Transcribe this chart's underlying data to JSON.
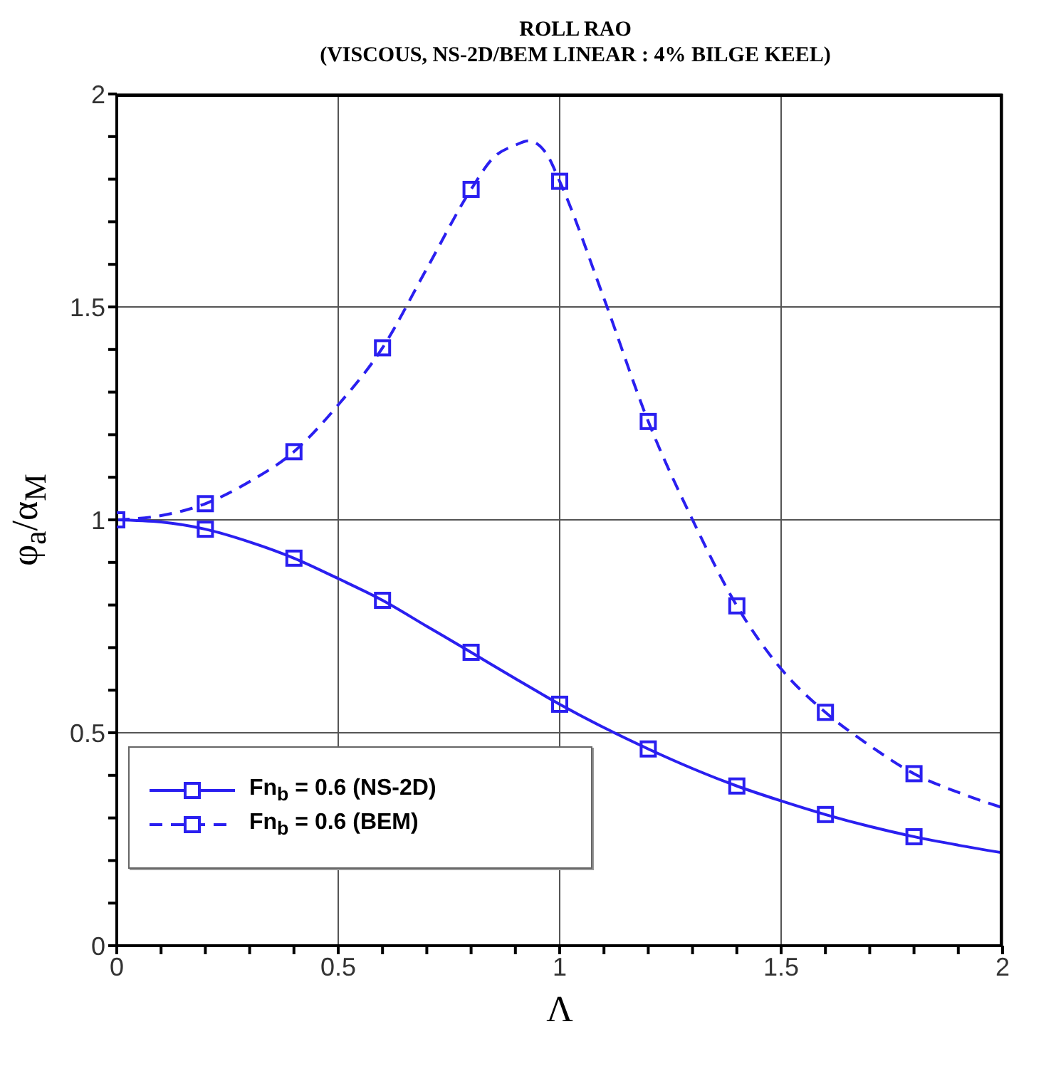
{
  "chart_data": {
    "type": "line",
    "title": "ROLL RAO",
    "subtitle": "(VISCOUS, NS-2D/BEM LINEAR : 4% BILGE KEEL)",
    "xlabel": "Λ",
    "ylabel": "φ$_{a}$/α$_{M}$",
    "xlim": [
      0,
      2
    ],
    "ylim": [
      0,
      2
    ],
    "xticks": [
      0,
      {
        "value": 0.1,
        "label": null
      },
      {
        "value": 0.2,
        "label": null
      },
      {
        "value": 0.3,
        "label": null
      },
      {
        "value": 0.4,
        "label": null
      },
      0.5,
      {
        "value": 0.6,
        "label": null
      },
      {
        "value": 0.7,
        "label": null
      },
      {
        "value": 0.8,
        "label": null
      },
      {
        "value": 0.9,
        "label": null
      },
      1,
      {
        "value": 1.1,
        "label": null
      },
      {
        "value": 1.2,
        "label": null
      },
      {
        "value": 1.3,
        "label": null
      },
      {
        "value": 1.4,
        "label": null
      },
      1.5,
      {
        "value": 1.6,
        "label": null
      },
      {
        "value": 1.7,
        "label": null
      },
      {
        "value": 1.8,
        "label": null
      },
      {
        "value": 1.9,
        "label": null
      },
      2
    ],
    "yticks": [
      0,
      {
        "value": 0.1,
        "label": null
      },
      {
        "value": 0.2,
        "label": null
      },
      {
        "value": 0.3,
        "label": null
      },
      {
        "value": 0.4,
        "label": null
      },
      0.5,
      {
        "value": 0.6,
        "label": null
      },
      {
        "value": 0.7,
        "label": null
      },
      {
        "value": 0.8,
        "label": null
      },
      {
        "value": 0.9,
        "label": null
      },
      1,
      {
        "value": 1.1,
        "label": null
      },
      {
        "value": 1.2,
        "label": null
      },
      {
        "value": 1.3,
        "label": null
      },
      {
        "value": 1.4,
        "label": null
      },
      1.5,
      {
        "value": 1.6,
        "label": null
      },
      {
        "value": 1.7,
        "label": null
      },
      {
        "value": 1.8,
        "label": null
      },
      {
        "value": 1.9,
        "label": null
      },
      2
    ],
    "grid": true,
    "legend": "bottom left",
    "series": [
      {
        "name": "Fn$_{b}$ = 0.6 (NS-2D)",
        "color": "#2a1ff0",
        "line_style": "solid",
        "marker": "none",
        "x": [
          0,
          0.1,
          0.2,
          0.3,
          0.4,
          0.5,
          0.6,
          0.7,
          0.8,
          0.9,
          1.0,
          1.1,
          1.2,
          1.3,
          1.4,
          1.5,
          1.6,
          1.7,
          1.8,
          1.9,
          2.0
        ],
        "values": [
          1.0,
          0.995,
          0.978,
          0.948,
          0.91,
          0.862,
          0.811,
          0.75,
          0.689,
          0.627,
          0.567,
          0.512,
          0.462,
          0.416,
          0.375,
          0.34,
          0.308,
          0.28,
          0.256,
          0.236,
          0.218
        ]
      },
      {
        "type": "scatter",
        "color": "#2a1ff0",
        "marker": "square",
        "x": [
          0,
          0.2,
          0.4,
          0.6,
          0.8,
          1.0,
          1.2,
          1.4,
          1.6,
          1.8
        ],
        "values": [
          1.0,
          0.978,
          0.91,
          0.811,
          0.689,
          0.567,
          0.462,
          0.375,
          0.308,
          0.256
        ]
      },
      {
        "name": "Fn$_{b}$ = 0.6 (BEM)",
        "color": "#2a1ff0",
        "line_style": "dashed",
        "marker": "none",
        "x": [
          0,
          0.1,
          0.2,
          0.3,
          0.4,
          0.5,
          0.6,
          0.7,
          0.8,
          0.85,
          0.9,
          0.93,
          0.97,
          1.0,
          1.1,
          1.2,
          1.3,
          1.4,
          1.5,
          1.6,
          1.7,
          1.8,
          1.9,
          2.0
        ],
        "values": [
          1.0,
          1.01,
          1.038,
          1.09,
          1.16,
          1.27,
          1.404,
          1.59,
          1.776,
          1.85,
          1.88,
          1.89,
          1.86,
          1.795,
          1.52,
          1.231,
          1.0,
          0.798,
          0.65,
          0.548,
          0.47,
          0.404,
          0.36,
          0.324
        ]
      },
      {
        "type": "scatter",
        "color": "#2a1ff0",
        "marker": "square",
        "x": [
          0.2,
          0.4,
          0.6,
          0.8,
          1.0,
          1.2,
          1.4,
          1.6,
          1.8
        ],
        "values": [
          1.038,
          1.16,
          1.404,
          1.776,
          1.795,
          1.231,
          0.798,
          0.548,
          0.404
        ]
      }
    ]
  }
}
